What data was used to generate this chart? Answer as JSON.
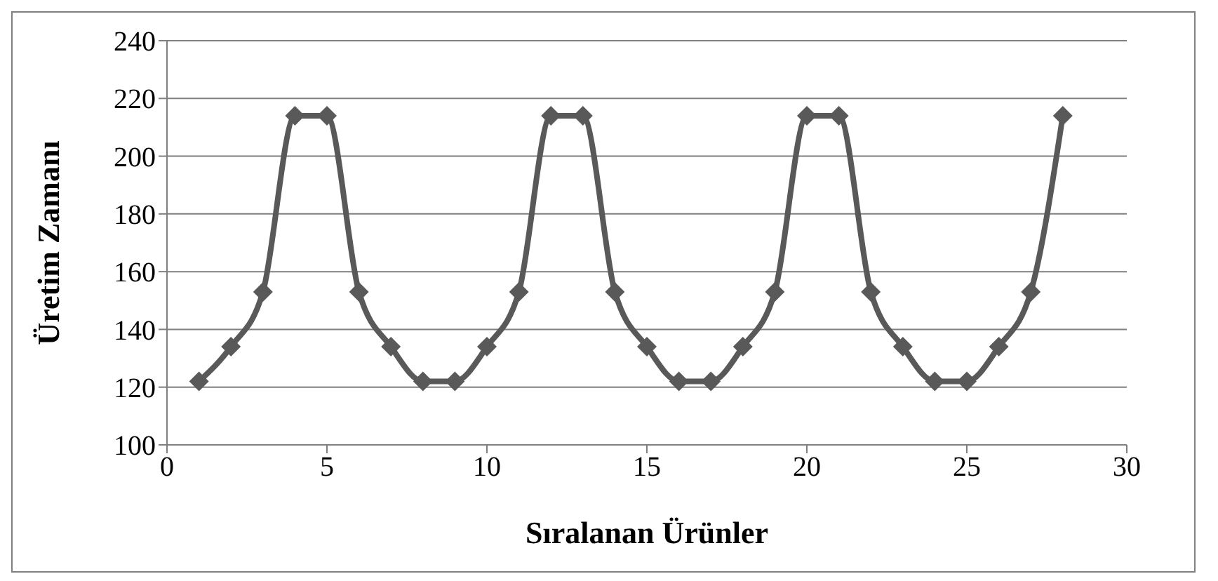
{
  "chart_data": {
    "type": "line",
    "xlabel": "Sıralanan Ürünler",
    "ylabel": "Üretim Zamanı",
    "x": [
      1,
      2,
      3,
      4,
      5,
      6,
      7,
      8,
      9,
      10,
      11,
      12,
      13,
      14,
      15,
      16,
      17,
      18,
      19,
      20,
      21,
      22,
      23,
      24,
      25,
      26,
      27,
      28
    ],
    "series": [
      {
        "color": "#595959",
        "values": [
          122,
          134,
          153,
          214,
          214,
          153,
          134,
          122,
          122,
          134,
          153,
          214,
          214,
          153,
          134,
          122,
          122,
          134,
          153,
          214,
          214,
          153,
          134,
          122,
          122,
          134,
          153,
          214
        ]
      }
    ],
    "xlim": [
      0,
      30
    ],
    "xticks": [
      0,
      5,
      10,
      15,
      20,
      25,
      30
    ],
    "ylim": [
      100,
      240
    ],
    "yticks": [
      100,
      120,
      140,
      160,
      180,
      200,
      220,
      240
    ],
    "grid": "y",
    "marker": "diamond",
    "line_style": "solid"
  }
}
